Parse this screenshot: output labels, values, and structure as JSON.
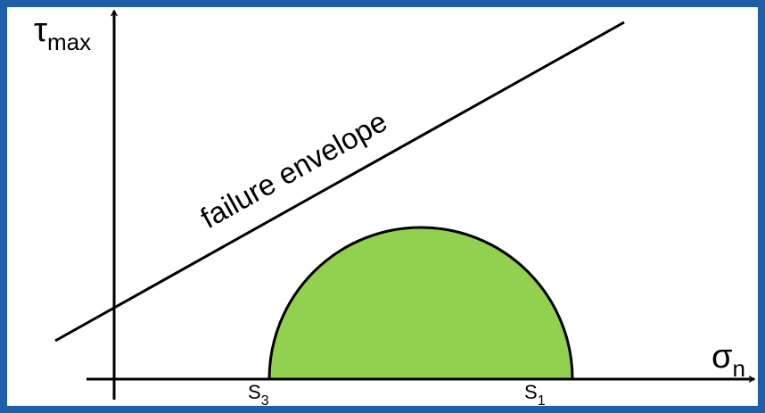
{
  "y_axis_label": {
    "symbol": "τ",
    "subscript": "max"
  },
  "x_axis_label": {
    "symbol": "σ",
    "subscript": "n"
  },
  "line_label": "failure envelope",
  "s3_label": {
    "symbol": "S",
    "subscript": "3"
  },
  "s1_label": {
    "symbol": "S",
    "subscript": "1"
  }
}
